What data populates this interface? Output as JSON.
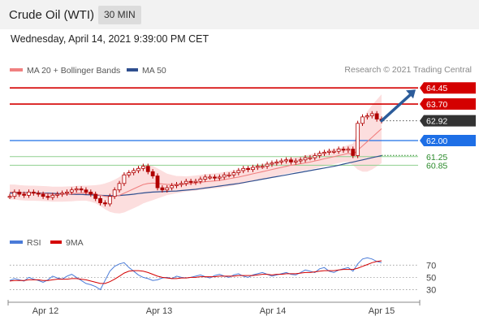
{
  "header": {
    "instrument": "Crude Oil (WTI)",
    "timeframe": "30 MIN"
  },
  "datetime": "Wednesday, April 14, 2021 9:39:00 PM CET",
  "copyright": "Research © 2021 Trading Central",
  "colors": {
    "ma20": "#f08080",
    "ma50": "#2f4f8f",
    "resistance": "#d40000",
    "support_blue": "#1e6fe6",
    "support_green": "#2a8a2a",
    "price_tag": "#333333",
    "arrow": "#2c5c9a",
    "candle": "#b00000",
    "rsi": "#4a7bd8",
    "rsi_ma": "#d40000"
  },
  "chart_data": [
    {
      "type": "candlestick",
      "legend": [
        "MA 20 + Bollinger Bands",
        "MA 50"
      ],
      "price_levels": [
        {
          "value": 64.45,
          "label": "64.45",
          "kind": "resistance"
        },
        {
          "value": 63.7,
          "label": "63.70",
          "kind": "resistance"
        },
        {
          "value": 62.92,
          "label": "62.92",
          "kind": "last"
        },
        {
          "value": 62.0,
          "label": "62.00",
          "kind": "pivot"
        },
        {
          "value": 61.25,
          "label": "61.25",
          "kind": "support"
        },
        {
          "value": 60.85,
          "label": "60.85",
          "kind": "support"
        }
      ],
      "x_ticks": [
        "Apr 12",
        "Apr 13",
        "Apr 14",
        "Apr 15"
      ],
      "close": [
        59.4,
        59.6,
        59.5,
        59.45,
        59.6,
        59.55,
        59.5,
        59.4,
        59.35,
        59.45,
        59.5,
        59.55,
        59.6,
        59.7,
        59.75,
        59.7,
        59.6,
        59.5,
        59.3,
        59.1,
        59.05,
        59.4,
        59.7,
        60.0,
        60.4,
        60.5,
        60.6,
        60.7,
        60.8,
        60.55,
        60.35,
        59.8,
        59.7,
        59.8,
        59.9,
        59.95,
        60.0,
        60.1,
        60.05,
        60.1,
        60.2,
        60.3,
        60.3,
        60.25,
        60.3,
        60.4,
        60.4,
        60.5,
        60.6,
        60.7,
        60.65,
        60.75,
        60.8,
        60.8,
        60.9,
        60.95,
        61.0,
        61.05,
        61.1,
        61.0,
        61.05,
        61.1,
        61.2,
        61.2,
        61.3,
        61.4,
        61.45,
        61.5,
        61.5,
        61.6,
        61.55,
        61.6,
        61.3,
        62.8,
        63.1,
        63.15,
        63.25,
        63.0,
        62.92
      ],
      "ma20": [
        59.6,
        59.6,
        59.58,
        59.56,
        59.55,
        59.55,
        59.54,
        59.53,
        59.52,
        59.5,
        59.5,
        59.5,
        59.51,
        59.52,
        59.54,
        59.55,
        59.55,
        59.53,
        59.5,
        59.45,
        59.4,
        59.38,
        59.4,
        59.45,
        59.55,
        59.65,
        59.75,
        59.85,
        59.95,
        60.0,
        60.02,
        60.0,
        59.98,
        59.96,
        59.95,
        59.95,
        59.96,
        59.98,
        60.0,
        60.02,
        60.05,
        60.08,
        60.1,
        60.12,
        60.15,
        60.18,
        60.22,
        60.26,
        60.3,
        60.35,
        60.4,
        60.45,
        60.5,
        60.55,
        60.6,
        60.65,
        60.7,
        60.75,
        60.8,
        60.85,
        60.88,
        60.92,
        60.96,
        61.0,
        61.05,
        61.1,
        61.15,
        61.2,
        61.25,
        61.3,
        61.35,
        61.4,
        61.35,
        61.55,
        61.75,
        61.95,
        62.15,
        62.35,
        62.55
      ],
      "ma50": [
        59.55,
        59.56,
        59.57,
        59.57,
        59.57,
        59.56,
        59.56,
        59.55,
        59.55,
        59.54,
        59.53,
        59.52,
        59.51,
        59.5,
        59.49,
        59.49,
        59.48,
        59.47,
        59.46,
        59.45,
        59.44,
        59.43,
        59.43,
        59.44,
        59.46,
        59.48,
        59.5,
        59.53,
        59.56,
        59.58,
        59.6,
        59.61,
        59.62,
        59.63,
        59.64,
        59.65,
        59.67,
        59.69,
        59.71,
        59.73,
        59.76,
        59.79,
        59.82,
        59.85,
        59.88,
        59.91,
        59.94,
        59.97,
        60.0,
        60.04,
        60.08,
        60.12,
        60.16,
        60.2,
        60.24,
        60.28,
        60.32,
        60.36,
        60.4,
        60.44,
        60.48,
        60.52,
        60.56,
        60.6,
        60.64,
        60.68,
        60.72,
        60.76,
        60.8,
        60.85,
        60.9,
        60.95,
        61.0,
        61.05,
        61.1,
        61.15,
        61.2,
        61.25,
        61.3
      ],
      "band_width": [
        0.35,
        0.35,
        0.35,
        0.35,
        0.35,
        0.35,
        0.35,
        0.35,
        0.35,
        0.35,
        0.35,
        0.35,
        0.35,
        0.35,
        0.35,
        0.35,
        0.35,
        0.38,
        0.42,
        0.5,
        0.6,
        0.7,
        0.78,
        0.85,
        0.9,
        0.9,
        0.9,
        0.9,
        0.88,
        0.85,
        0.8,
        0.7,
        0.6,
        0.5,
        0.45,
        0.4,
        0.38,
        0.35,
        0.35,
        0.35,
        0.35,
        0.35,
        0.35,
        0.35,
        0.35,
        0.35,
        0.35,
        0.35,
        0.35,
        0.35,
        0.35,
        0.35,
        0.35,
        0.35,
        0.35,
        0.35,
        0.35,
        0.35,
        0.35,
        0.35,
        0.35,
        0.35,
        0.35,
        0.35,
        0.35,
        0.35,
        0.35,
        0.35,
        0.35,
        0.35,
        0.35,
        0.4,
        0.5,
        0.9,
        1.2,
        1.4,
        1.5,
        1.55,
        1.6
      ],
      "projection": {
        "from": 62.92,
        "to": 64.45
      }
    },
    {
      "type": "line",
      "legend": [
        "RSI",
        "9MA"
      ],
      "y_ticks": [
        70,
        50,
        30
      ],
      "rsi": [
        45,
        48,
        46,
        44,
        50,
        47,
        45,
        42,
        46,
        52,
        49,
        47,
        52,
        55,
        50,
        45,
        40,
        38,
        35,
        30,
        45,
        60,
        68,
        72,
        74,
        66,
        60,
        54,
        50,
        48,
        45,
        46,
        49,
        50,
        48,
        52,
        50,
        49,
        50,
        52,
        54,
        51,
        49,
        53,
        55,
        52,
        50,
        54,
        56,
        52,
        50,
        54,
        56,
        58,
        55,
        52,
        54,
        56,
        58,
        55,
        54,
        58,
        62,
        60,
        58,
        64,
        66,
        60,
        58,
        62,
        64,
        66,
        60,
        72,
        80,
        82,
        80,
        76,
        74
      ],
      "ma9": [
        44,
        45,
        45,
        45,
        46,
        46,
        46,
        45,
        45,
        46,
        47,
        47,
        47,
        48,
        48,
        47,
        46,
        44,
        42,
        40,
        40,
        43,
        47,
        52,
        57,
        60,
        61,
        61,
        60,
        58,
        55,
        52,
        50,
        49,
        48,
        48,
        49,
        49,
        50,
        50,
        51,
        51,
        51,
        51,
        52,
        52,
        52,
        52,
        53,
        53,
        53,
        53,
        54,
        55,
        55,
        54,
        55,
        55,
        56,
        56,
        56,
        57,
        58,
        58,
        59,
        60,
        61,
        61,
        61,
        62,
        63,
        63,
        63,
        65,
        68,
        71,
        74,
        76,
        77
      ]
    }
  ]
}
